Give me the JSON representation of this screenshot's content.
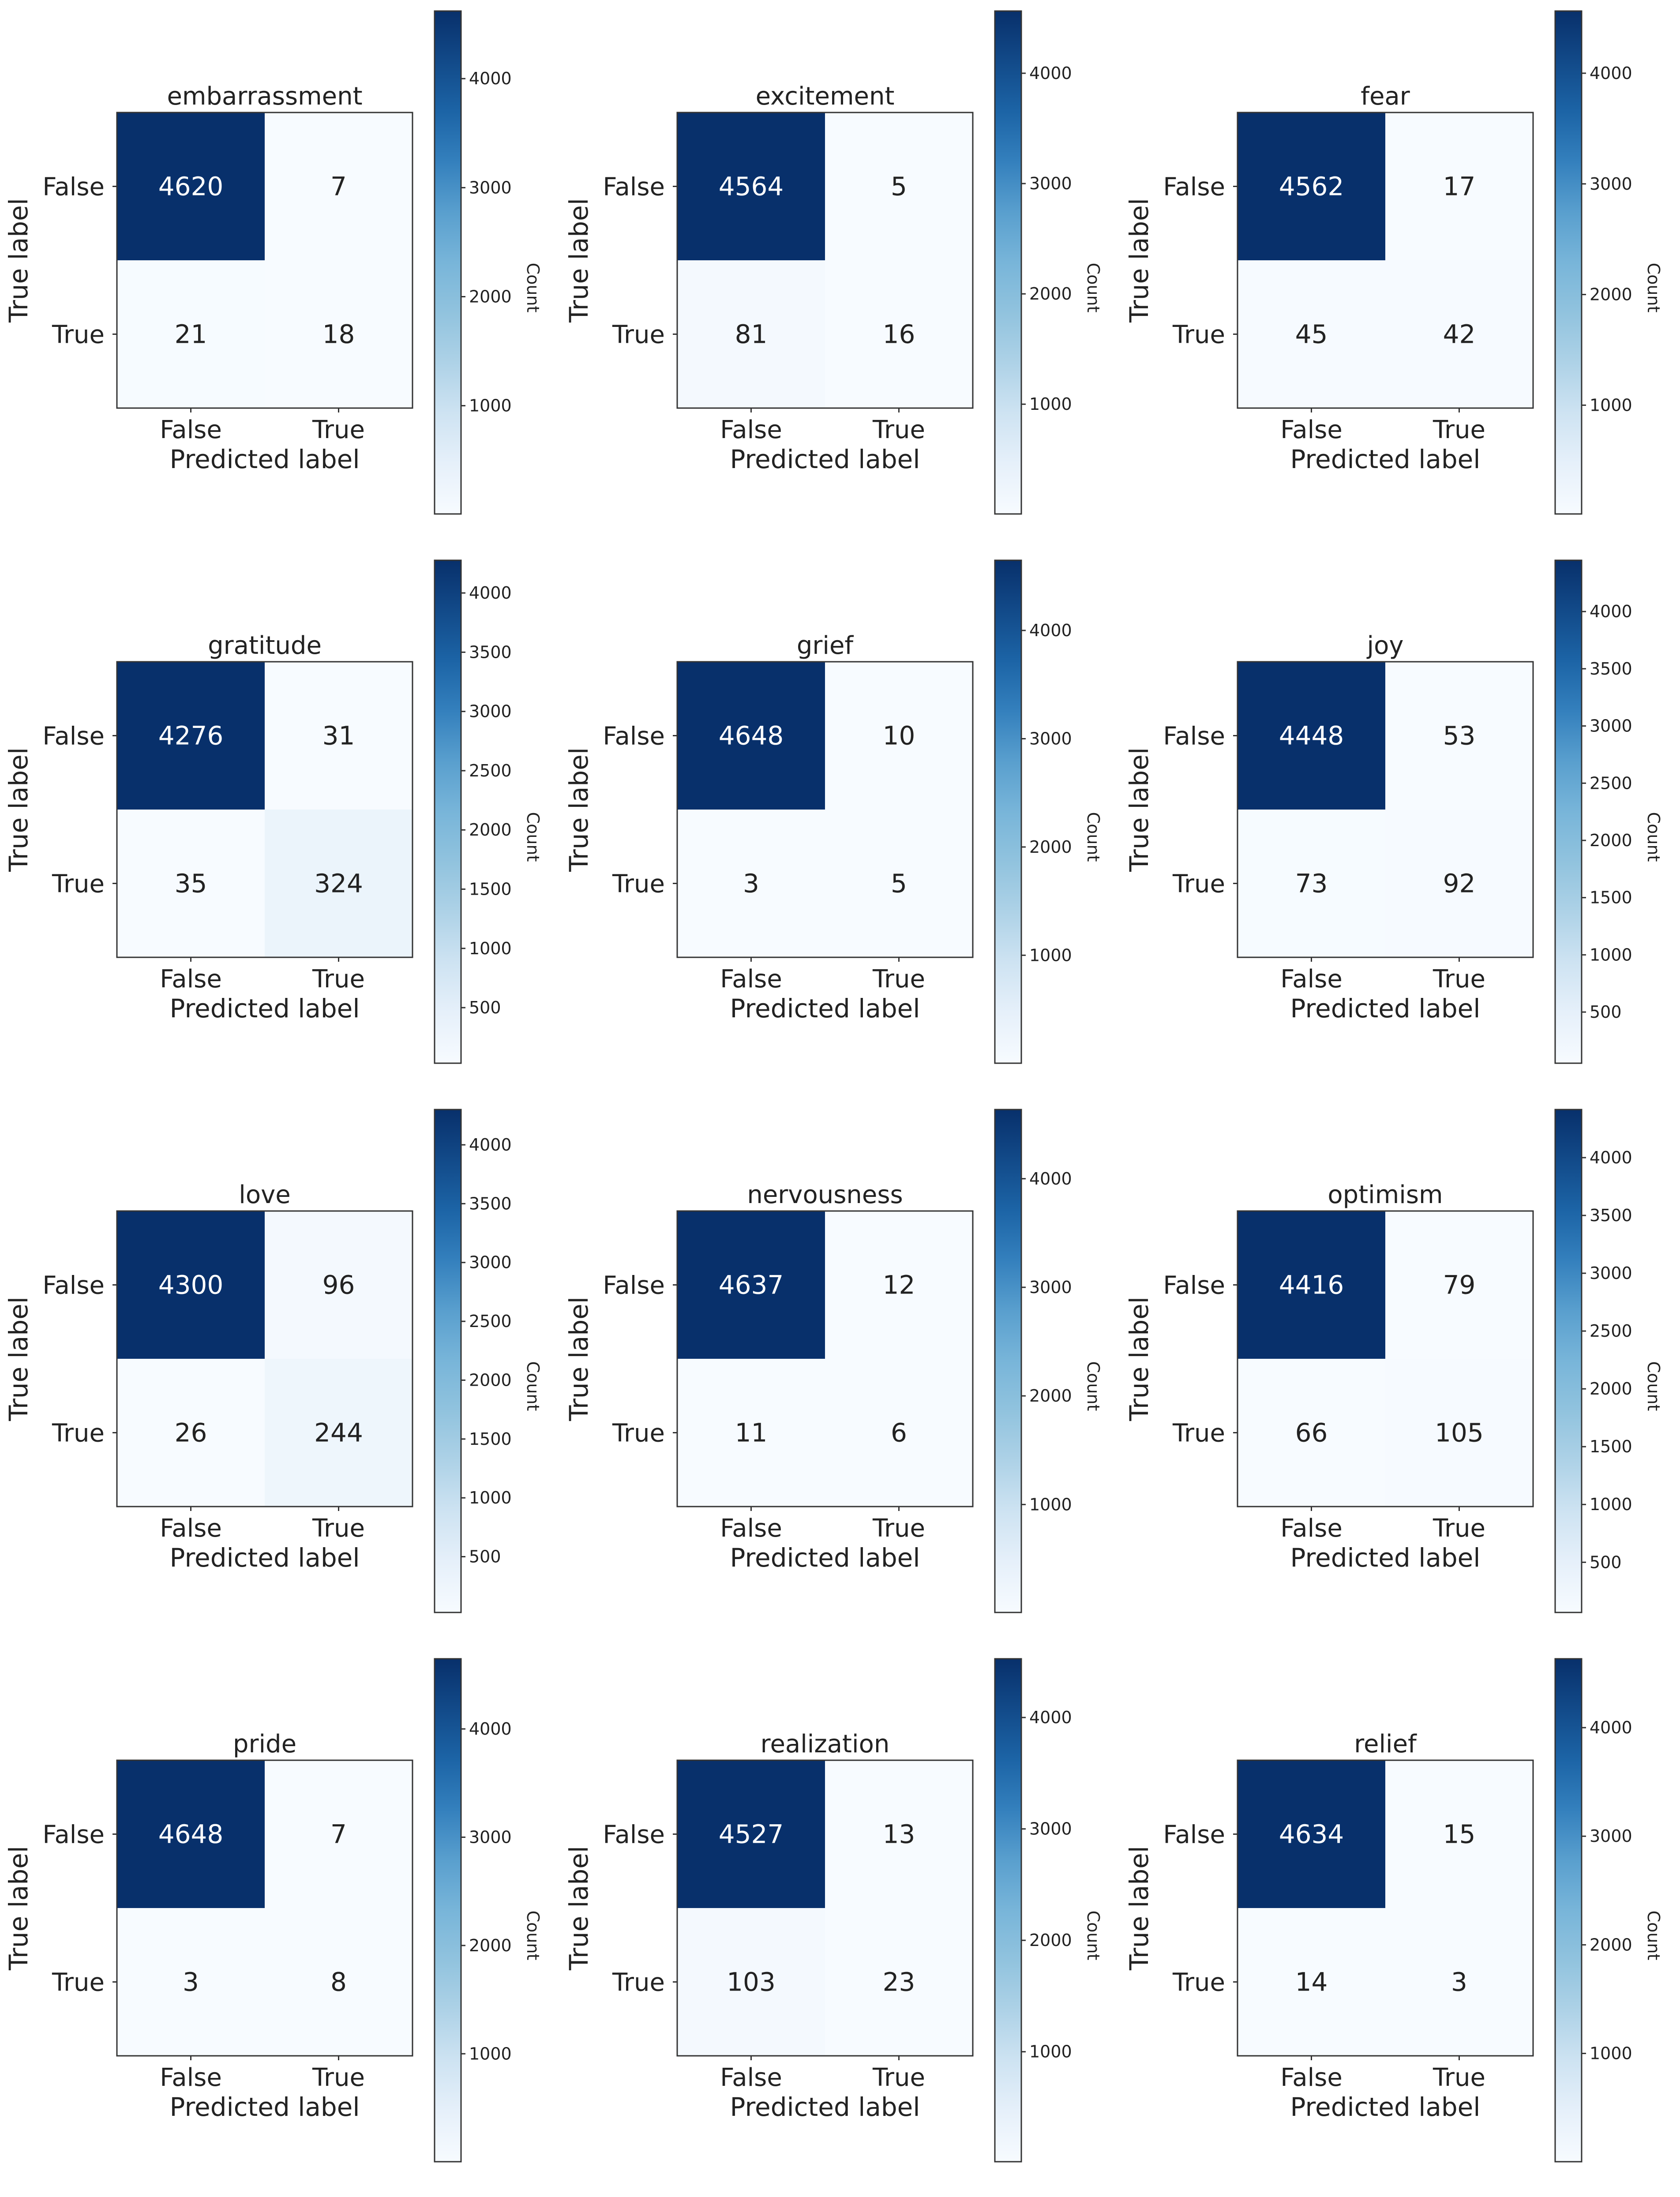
{
  "chart_data": [
    {
      "type": "heatmap",
      "title": "embarrassment",
      "xlabel": "Predicted label",
      "ylabel": "True label",
      "colorbar_label": "Count",
      "x_categories": [
        "False",
        "True"
      ],
      "y_categories": [
        "False",
        "True"
      ],
      "matrix": [
        [
          4620,
          7
        ],
        [
          21,
          18
        ]
      ],
      "colorbar_ticks": [
        "1000",
        "2000",
        "3000",
        "4000"
      ]
    },
    {
      "type": "heatmap",
      "title": "excitement",
      "xlabel": "Predicted label",
      "ylabel": "True label",
      "colorbar_label": "Count",
      "x_categories": [
        "False",
        "True"
      ],
      "y_categories": [
        "False",
        "True"
      ],
      "matrix": [
        [
          4564,
          5
        ],
        [
          81,
          16
        ]
      ],
      "colorbar_ticks": [
        "1000",
        "2000",
        "3000",
        "4000"
      ]
    },
    {
      "type": "heatmap",
      "title": "fear",
      "xlabel": "Predicted label",
      "ylabel": "True label",
      "colorbar_label": "Count",
      "x_categories": [
        "False",
        "True"
      ],
      "y_categories": [
        "False",
        "True"
      ],
      "matrix": [
        [
          4562,
          17
        ],
        [
          45,
          42
        ]
      ],
      "colorbar_ticks": [
        "1000",
        "2000",
        "3000",
        "4000"
      ]
    },
    {
      "type": "heatmap",
      "title": "gratitude",
      "xlabel": "Predicted label",
      "ylabel": "True label",
      "colorbar_label": "Count",
      "x_categories": [
        "False",
        "True"
      ],
      "y_categories": [
        "False",
        "True"
      ],
      "matrix": [
        [
          4276,
          31
        ],
        [
          35,
          324
        ]
      ],
      "colorbar_ticks": [
        "500",
        "1000",
        "1500",
        "2000",
        "2500",
        "3000",
        "3500",
        "4000"
      ]
    },
    {
      "type": "heatmap",
      "title": "grief",
      "xlabel": "Predicted label",
      "ylabel": "True label",
      "colorbar_label": "Count",
      "x_categories": [
        "False",
        "True"
      ],
      "y_categories": [
        "False",
        "True"
      ],
      "matrix": [
        [
          4648,
          10
        ],
        [
          3,
          5
        ]
      ],
      "colorbar_ticks": [
        "1000",
        "2000",
        "3000",
        "4000"
      ]
    },
    {
      "type": "heatmap",
      "title": "joy",
      "xlabel": "Predicted label",
      "ylabel": "True label",
      "colorbar_label": "Count",
      "x_categories": [
        "False",
        "True"
      ],
      "y_categories": [
        "False",
        "True"
      ],
      "matrix": [
        [
          4448,
          53
        ],
        [
          73,
          92
        ]
      ],
      "colorbar_ticks": [
        "500",
        "1000",
        "1500",
        "2000",
        "2500",
        "3000",
        "3500",
        "4000"
      ]
    },
    {
      "type": "heatmap",
      "title": "love",
      "xlabel": "Predicted label",
      "ylabel": "True label",
      "colorbar_label": "Count",
      "x_categories": [
        "False",
        "True"
      ],
      "y_categories": [
        "False",
        "True"
      ],
      "matrix": [
        [
          4300,
          96
        ],
        [
          26,
          244
        ]
      ],
      "colorbar_ticks": [
        "500",
        "1000",
        "1500",
        "2000",
        "2500",
        "3000",
        "3500",
        "4000"
      ]
    },
    {
      "type": "heatmap",
      "title": "nervousness",
      "xlabel": "Predicted label",
      "ylabel": "True label",
      "colorbar_label": "Count",
      "x_categories": [
        "False",
        "True"
      ],
      "y_categories": [
        "False",
        "True"
      ],
      "matrix": [
        [
          4637,
          12
        ],
        [
          11,
          6
        ]
      ],
      "colorbar_ticks": [
        "1000",
        "2000",
        "3000",
        "4000"
      ]
    },
    {
      "type": "heatmap",
      "title": "optimism",
      "xlabel": "Predicted label",
      "ylabel": "True label",
      "colorbar_label": "Count",
      "x_categories": [
        "False",
        "True"
      ],
      "y_categories": [
        "False",
        "True"
      ],
      "matrix": [
        [
          4416,
          79
        ],
        [
          66,
          105
        ]
      ],
      "colorbar_ticks": [
        "500",
        "1000",
        "1500",
        "2000",
        "2500",
        "3000",
        "3500",
        "4000"
      ]
    },
    {
      "type": "heatmap",
      "title": "pride",
      "xlabel": "Predicted label",
      "ylabel": "True label",
      "colorbar_label": "Count",
      "x_categories": [
        "False",
        "True"
      ],
      "y_categories": [
        "False",
        "True"
      ],
      "matrix": [
        [
          4648,
          7
        ],
        [
          3,
          8
        ]
      ],
      "colorbar_ticks": [
        "1000",
        "2000",
        "3000",
        "4000"
      ]
    },
    {
      "type": "heatmap",
      "title": "realization",
      "xlabel": "Predicted label",
      "ylabel": "True label",
      "colorbar_label": "Count",
      "x_categories": [
        "False",
        "True"
      ],
      "y_categories": [
        "False",
        "True"
      ],
      "matrix": [
        [
          4527,
          13
        ],
        [
          103,
          23
        ]
      ],
      "colorbar_ticks": [
        "1000",
        "2000",
        "3000",
        "4000"
      ]
    },
    {
      "type": "heatmap",
      "title": "relief",
      "xlabel": "Predicted label",
      "ylabel": "True label",
      "colorbar_label": "Count",
      "x_categories": [
        "False",
        "True"
      ],
      "y_categories": [
        "False",
        "True"
      ],
      "matrix": [
        [
          4634,
          15
        ],
        [
          14,
          3
        ]
      ],
      "colorbar_ticks": [
        "1000",
        "2000",
        "3000",
        "4000"
      ]
    }
  ],
  "colors": {
    "cmap_low": "#f7fbff",
    "cmap_mid": "#6baed6",
    "cmap_high": "#08306b",
    "text_dark": "#222222",
    "text_light": "#ffffff",
    "axis": "#333333"
  }
}
